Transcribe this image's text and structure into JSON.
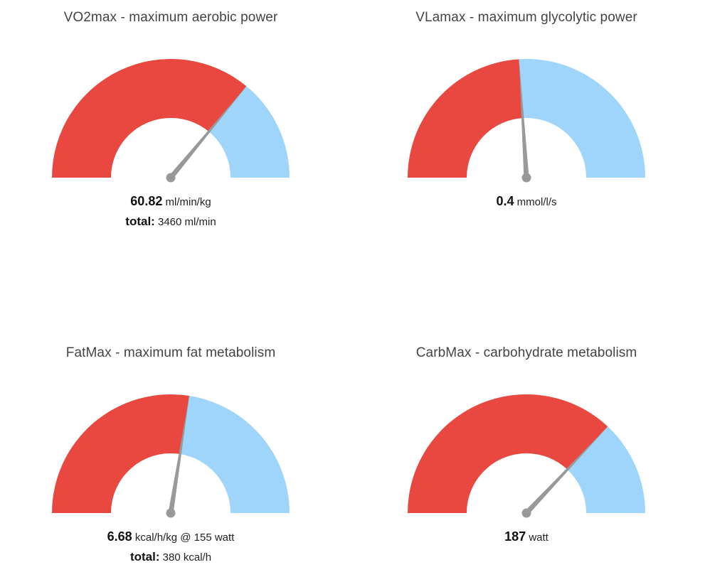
{
  "colors": {
    "filled": "#e8483f",
    "remaining": "#9fd5fb",
    "needle": "#999999"
  },
  "chart_data": [
    {
      "type": "gauge",
      "title": "VO2max - maximum aerobic power",
      "value_label": "60.82",
      "unit": "ml/min/kg",
      "fill_fraction": 0.72,
      "total_label": "total:",
      "total_value": "3460 ml/min"
    },
    {
      "type": "gauge",
      "title": "VLamax - maximum glycolytic power",
      "value_label": "0.4",
      "unit": "mmol/l/s",
      "fill_fraction": 0.48,
      "total_label": "",
      "total_value": ""
    },
    {
      "type": "gauge",
      "title": "FatMax - maximum fat metabolism",
      "value_label": "6.68",
      "unit": "kcal/h/kg @ 155 watt",
      "fill_fraction": 0.55,
      "total_label": "total:",
      "total_value": "380 kcal/h"
    },
    {
      "type": "gauge",
      "title": "CarbMax - carbohydrate metabolism",
      "value_label": "187",
      "unit": "watt",
      "fill_fraction": 0.74,
      "total_label": "",
      "total_value": ""
    }
  ]
}
